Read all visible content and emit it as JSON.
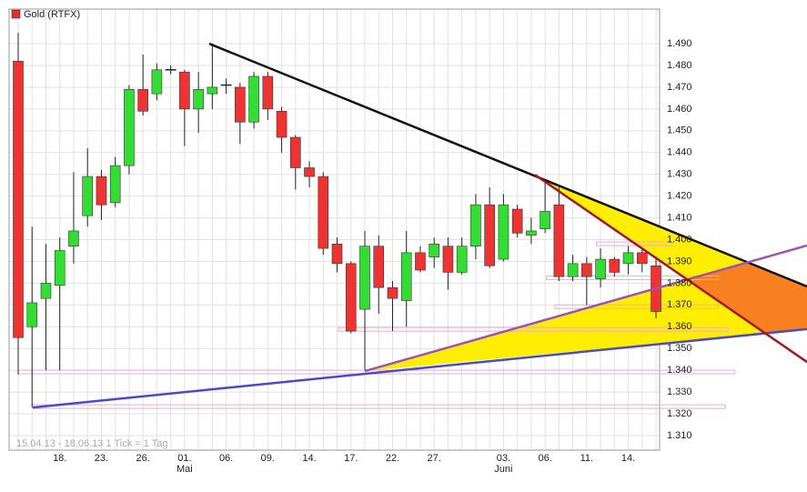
{
  "chart_data": {
    "type": "candlestick",
    "title": "Gold (RTFX)",
    "legend_color": "#e03030",
    "footer": "15.04.13 - 18.06.13   1 Tick = 1 Tag",
    "categories": [
      null,
      null,
      null,
      "18.",
      null,
      null,
      "23.",
      null,
      null,
      "26.",
      null,
      null,
      "01.",
      null,
      null,
      "06.",
      null,
      null,
      "09.",
      null,
      null,
      "14.",
      null,
      null,
      "17.",
      null,
      null,
      "22.",
      null,
      null,
      "27.",
      null,
      null,
      null,
      null,
      "03.",
      null,
      null,
      "06.",
      null,
      null,
      "11.",
      null,
      null,
      "14.",
      null,
      null
    ],
    "month_categories": [
      null,
      null,
      null,
      null,
      null,
      null,
      null,
      null,
      null,
      null,
      null,
      null,
      "Mai",
      null,
      null,
      null,
      null,
      null,
      null,
      null,
      null,
      null,
      null,
      null,
      null,
      null,
      null,
      null,
      null,
      null,
      null,
      null,
      null,
      null,
      null,
      "Juni",
      null,
      null,
      null,
      null,
      null,
      null,
      null,
      null,
      null,
      null,
      null
    ],
    "up_color": "#33dd33",
    "down_color": "#ee3333",
    "open": [
      1.482,
      1.36,
      1.373,
      1.379,
      1.397,
      1.411,
      1.429,
      1.417,
      1.434,
      1.469,
      1.467,
      1.478,
      1.477,
      1.46,
      1.467,
      1.471,
      1.47,
      1.454,
      1.475,
      1.459,
      1.447,
      1.433,
      1.429,
      1.398,
      1.389,
      1.368,
      1.397,
      1.378,
      1.372,
      1.394,
      1.392,
      1.397,
      1.385,
      1.397,
      1.416,
      1.391,
      1.414,
      1.402,
      1.405,
      1.416,
      1.383,
      1.389,
      1.382,
      1.391,
      1.389,
      1.394,
      1.388
    ],
    "high": [
      1.495,
      1.406,
      1.398,
      1.401,
      1.431,
      1.442,
      1.432,
      1.438,
      1.471,
      1.485,
      1.481,
      1.48,
      1.478,
      1.477,
      1.489,
      1.474,
      1.472,
      1.477,
      1.477,
      1.461,
      1.448,
      1.436,
      1.431,
      1.401,
      1.39,
      1.404,
      1.402,
      1.381,
      1.404,
      1.397,
      1.401,
      1.401,
      1.401,
      1.421,
      1.424,
      1.421,
      1.416,
      1.41,
      1.427,
      1.424,
      1.393,
      1.392,
      1.396,
      1.392,
      1.397,
      1.396,
      1.392
    ],
    "low": [
      1.338,
      1.323,
      1.34,
      1.34,
      1.389,
      1.406,
      1.409,
      1.415,
      1.43,
      1.457,
      1.464,
      1.476,
      1.443,
      1.449,
      1.46,
      1.467,
      1.444,
      1.451,
      1.455,
      1.44,
      1.423,
      1.424,
      1.393,
      1.385,
      1.357,
      1.34,
      1.366,
      1.358,
      1.36,
      1.385,
      1.387,
      1.377,
      1.384,
      1.391,
      1.387,
      1.39,
      1.401,
      1.398,
      1.403,
      1.381,
      1.381,
      1.37,
      1.378,
      1.383,
      1.384,
      1.385,
      1.364
    ],
    "close": [
      1.355,
      1.371,
      1.38,
      1.395,
      1.404,
      1.429,
      1.416,
      1.434,
      1.469,
      1.459,
      1.478,
      1.478,
      1.46,
      1.469,
      1.47,
      1.471,
      1.454,
      1.475,
      1.46,
      1.447,
      1.433,
      1.429,
      1.396,
      1.389,
      1.358,
      1.397,
      1.378,
      1.373,
      1.394,
      1.386,
      1.398,
      1.385,
      1.397,
      1.416,
      1.388,
      1.416,
      1.403,
      1.404,
      1.413,
      1.383,
      1.389,
      1.383,
      1.391,
      1.385,
      1.394,
      1.389,
      1.367
    ],
    "ylim": [
      1.3033,
      1.5059
    ],
    "yticks": [
      {
        "value": 1.31,
        "label": "1.310"
      },
      {
        "value": 1.32,
        "label": "1.320"
      },
      {
        "value": 1.33,
        "label": "1.330"
      },
      {
        "value": 1.34,
        "label": "1.340"
      },
      {
        "value": 1.35,
        "label": "1.350"
      },
      {
        "value": 1.36,
        "label": "1.360"
      },
      {
        "value": 1.37,
        "label": "1.370"
      },
      {
        "value": 1.38,
        "label": "1.380"
      },
      {
        "value": 1.39,
        "label": "1.390"
      },
      {
        "value": 1.4,
        "label": "1.400"
      },
      {
        "value": 1.41,
        "label": "1.410"
      },
      {
        "value": 1.42,
        "label": "1.420"
      },
      {
        "value": 1.43,
        "label": "1.430"
      },
      {
        "value": 1.44,
        "label": "1.440"
      },
      {
        "value": 1.45,
        "label": "1.450"
      },
      {
        "value": 1.46,
        "label": "1.460"
      },
      {
        "value": 1.47,
        "label": "1.470"
      },
      {
        "value": 1.48,
        "label": "1.480"
      },
      {
        "value": 1.49,
        "label": "1.490"
      }
    ],
    "grid": true,
    "trend_lines": [
      {
        "color": "#111111",
        "from": [
          13.78,
          1.49
        ],
        "to": [
          56.89,
          1.3785
        ]
      },
      {
        "color": "#4a4ac8",
        "from": [
          1.05,
          1.3229
        ],
        "to": [
          56.89,
          1.3589
        ]
      },
      {
        "color": "#9a55b0",
        "from": [
          25.0,
          1.3396
        ],
        "to": [
          56.89,
          1.3973
        ]
      },
      {
        "color": "#a01828",
        "from": [
          37.27,
          1.4298
        ],
        "to": [
          56.89,
          1.3438
        ]
      }
    ],
    "levels": [
      {
        "value": 1.3392,
        "from": 0,
        "to": 51.7
      },
      {
        "value": 1.3233,
        "from": 1.05,
        "to": 51.0
      },
      {
        "value": 1.3588,
        "from": 23.1,
        "to": 51.2
      },
      {
        "value": 1.3692,
        "from": 38.7,
        "to": 50.5
      },
      {
        "value": 1.3825,
        "from": 38.1,
        "to": 50.5
      },
      {
        "value": 1.3981,
        "from": 41.7,
        "to": 47.2
      }
    ],
    "level_color": "#f0a8d0"
  }
}
